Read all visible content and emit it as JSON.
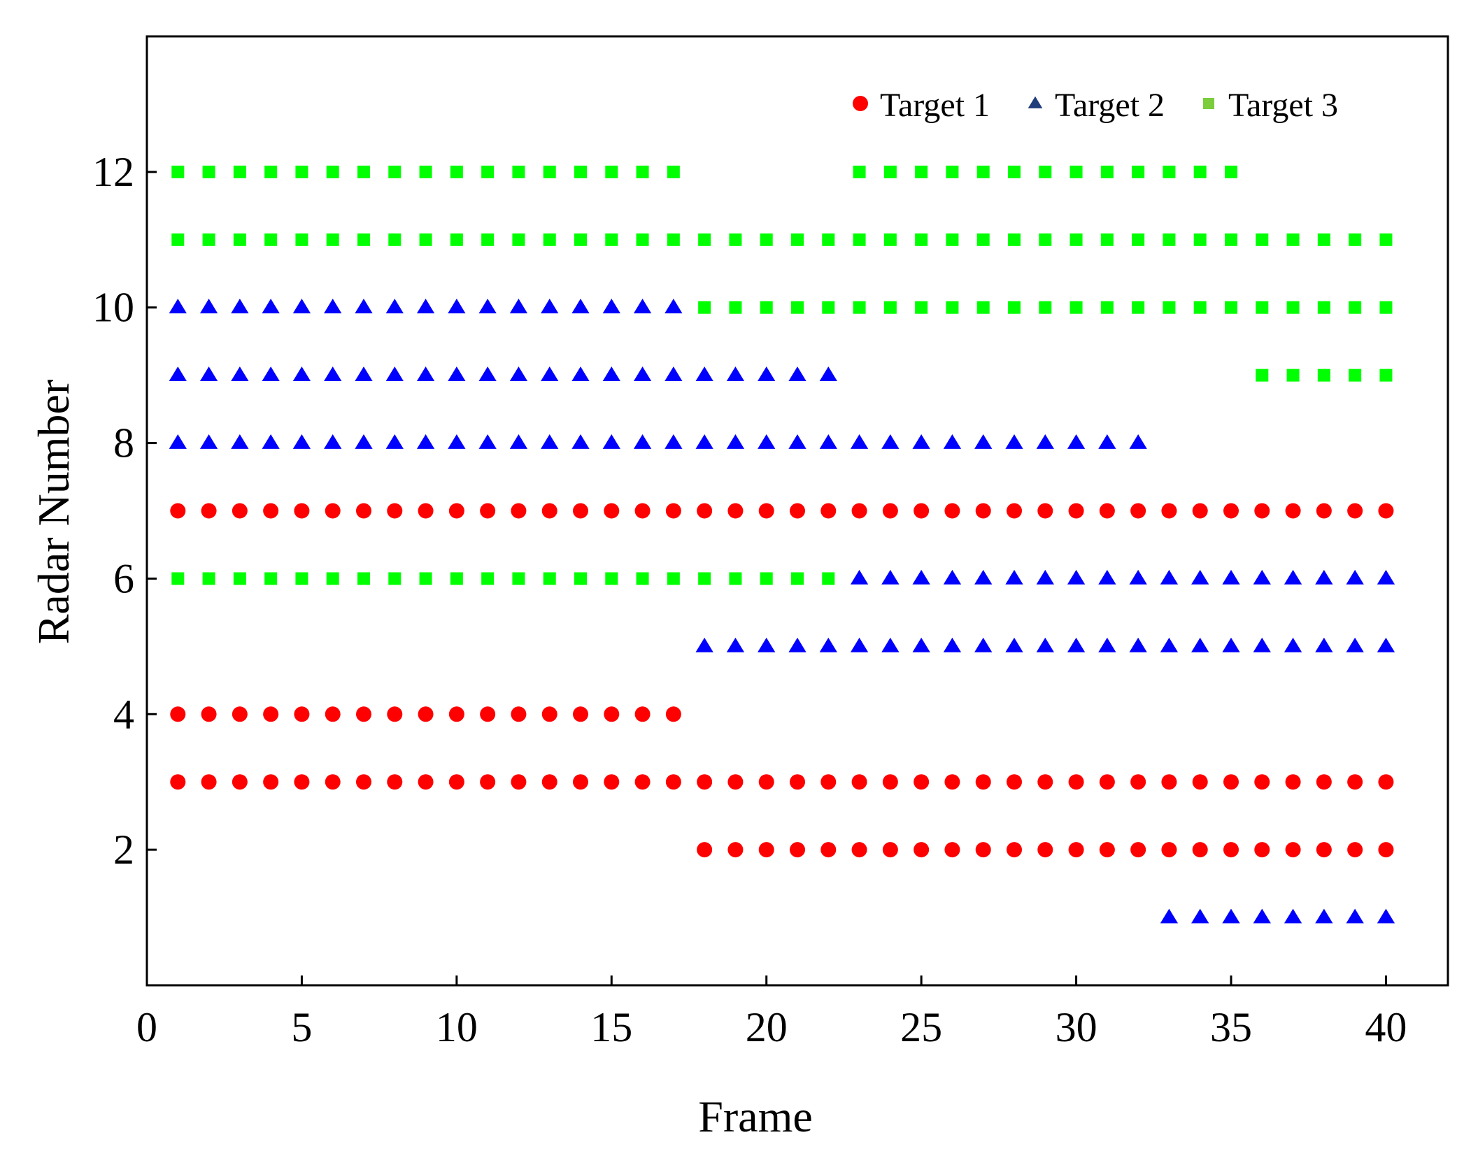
{
  "chart_data": {
    "type": "scatter",
    "title": "",
    "xlabel": "Frame",
    "ylabel": "Radar Number",
    "xlim": [
      0,
      42
    ],
    "ylim": [
      0,
      14
    ],
    "xticks": [
      0,
      5,
      10,
      15,
      20,
      25,
      30,
      35,
      40
    ],
    "yticks": [
      2,
      4,
      6,
      8,
      10,
      12
    ],
    "grid": false,
    "legend_position": "top-right",
    "series": [
      {
        "name": "Target 1",
        "marker": "circle",
        "color": "#ff0000",
        "segments": [
          {
            "y": 7,
            "x_from": 1,
            "x_to": 40
          },
          {
            "y": 4,
            "x_from": 1,
            "x_to": 17
          },
          {
            "y": 3,
            "x_from": 1,
            "x_to": 40
          },
          {
            "y": 2,
            "x_from": 18,
            "x_to": 40
          }
        ]
      },
      {
        "name": "Target 2",
        "marker": "triangle",
        "color": "#0000ff",
        "legend_color": "#1f3d7a",
        "segments": [
          {
            "y": 10,
            "x_from": 1,
            "x_to": 17
          },
          {
            "y": 9,
            "x_from": 1,
            "x_to": 22
          },
          {
            "y": 8,
            "x_from": 1,
            "x_to": 32
          },
          {
            "y": 6,
            "x_from": 23,
            "x_to": 40
          },
          {
            "y": 5,
            "x_from": 18,
            "x_to": 40
          },
          {
            "y": 1,
            "x_from": 33,
            "x_to": 40
          }
        ]
      },
      {
        "name": "Target 3",
        "marker": "square",
        "color": "#00ff00",
        "legend_color": "#7ccd3c",
        "segments": [
          {
            "y": 12,
            "x_from": 1,
            "x_to": 17
          },
          {
            "y": 12,
            "x_from": 23,
            "x_to": 35
          },
          {
            "y": 11,
            "x_from": 1,
            "x_to": 40
          },
          {
            "y": 10,
            "x_from": 18,
            "x_to": 40
          },
          {
            "y": 9,
            "x_from": 36,
            "x_to": 40
          },
          {
            "y": 6,
            "x_from": 1,
            "x_to": 22
          }
        ]
      }
    ]
  }
}
